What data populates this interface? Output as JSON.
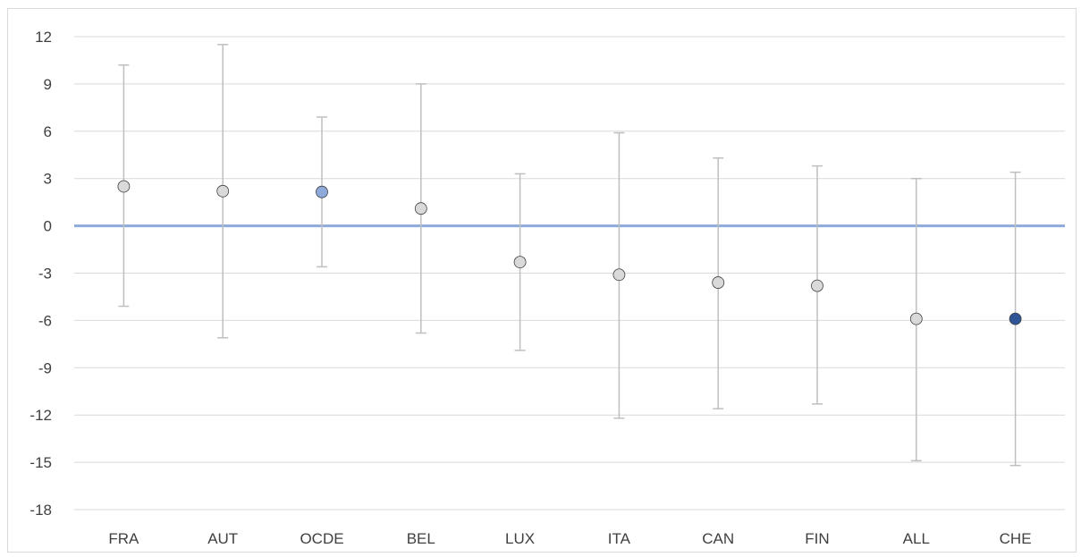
{
  "chart_data": {
    "type": "scatter",
    "title": "",
    "xlabel": "",
    "ylabel": "",
    "categories": [
      "FRA",
      "AUT",
      "OCDE",
      "BEL",
      "LUX",
      "ITA",
      "CAN",
      "FIN",
      "ALL",
      "CHE"
    ],
    "values": [
      2.5,
      2.2,
      2.15,
      1.1,
      -2.3,
      -3.1,
      -3.6,
      -3.8,
      -5.9,
      -5.9
    ],
    "error_low": [
      -5.1,
      -7.1,
      -2.6,
      -6.8,
      -7.9,
      -12.2,
      -11.6,
      -11.3,
      -14.9,
      -15.2
    ],
    "error_high": [
      10.2,
      11.5,
      6.9,
      9.0,
      3.3,
      5.9,
      4.3,
      3.8,
      3.0,
      3.4
    ],
    "point_colors": [
      "#d9d9d9",
      "#d9d9d9",
      "#8eaadb",
      "#d9d9d9",
      "#d9d9d9",
      "#d9d9d9",
      "#d9d9d9",
      "#d9d9d9",
      "#d9d9d9",
      "#2f5597"
    ],
    "yticks": [
      12,
      9,
      6,
      3,
      0,
      -3,
      -6,
      -9,
      -12,
      -15,
      -18
    ],
    "ylim": [
      -18,
      12
    ],
    "grid": true,
    "reference_line": {
      "y": 0,
      "color": "#8eaadb"
    },
    "error_bar_color": "#bfbfbf"
  }
}
